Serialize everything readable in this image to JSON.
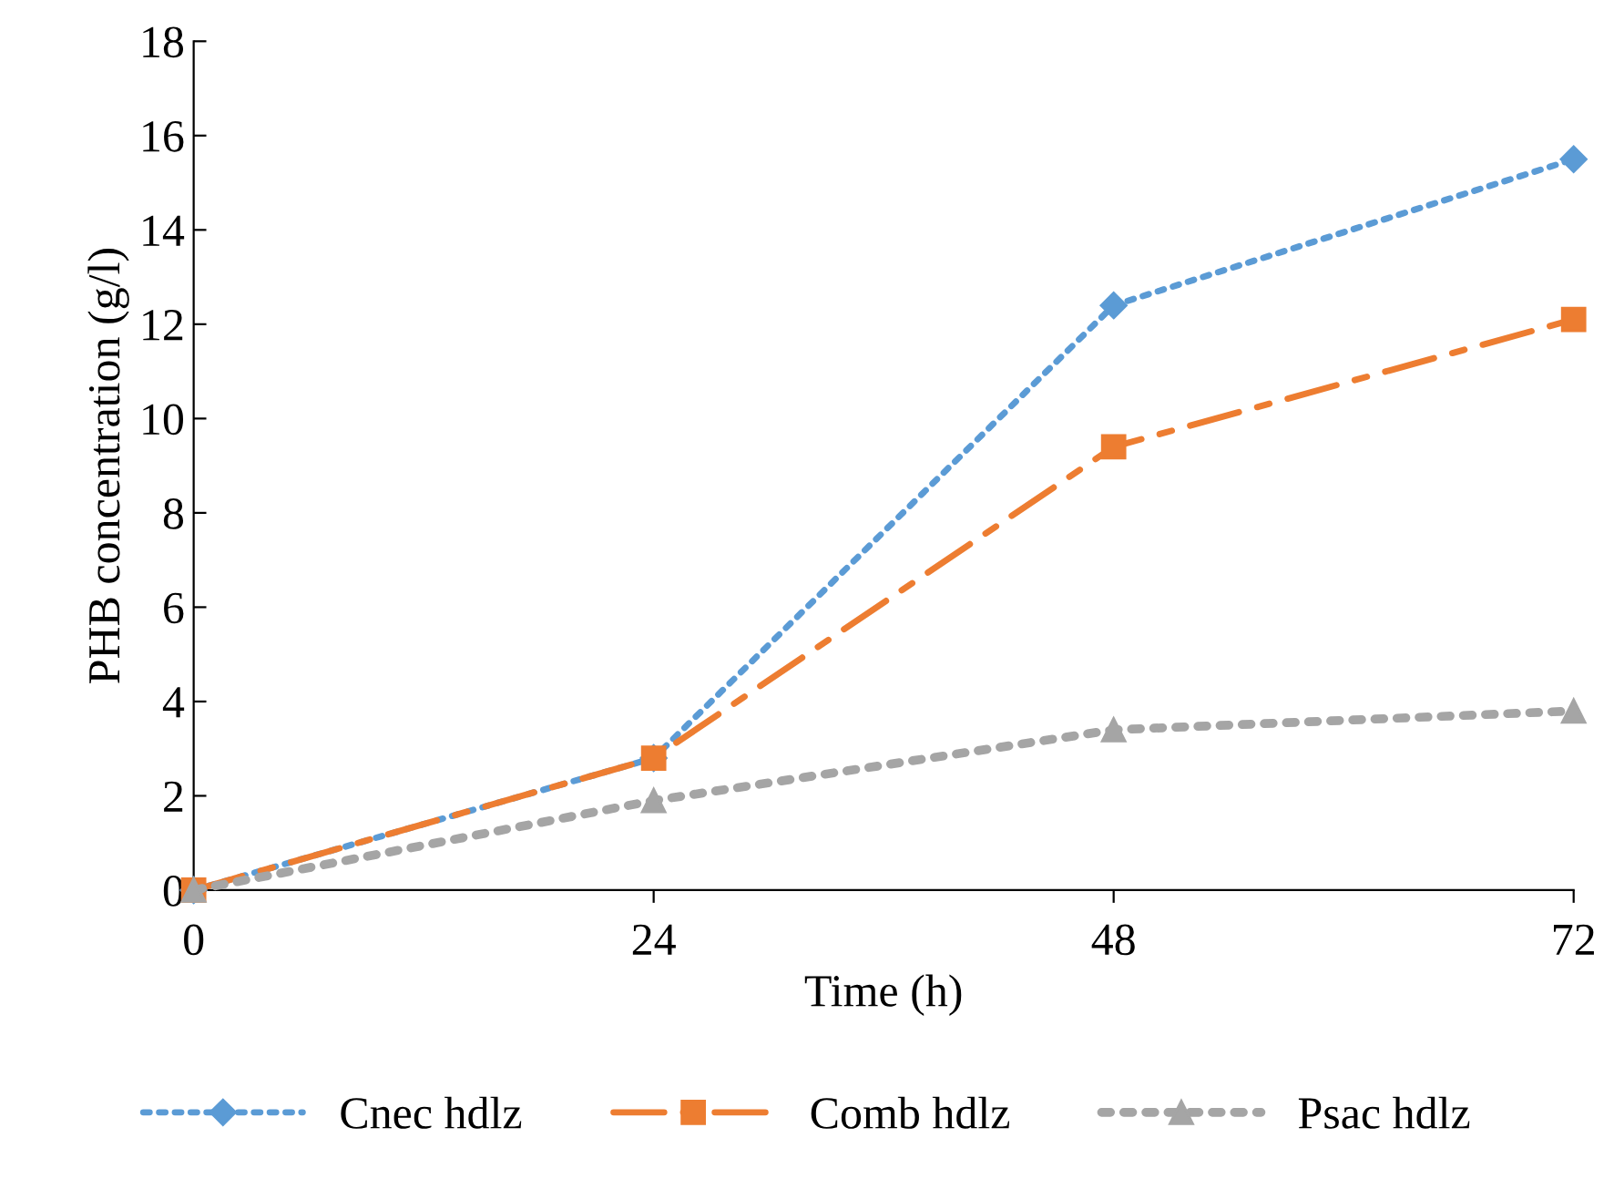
{
  "chart_data": {
    "type": "line",
    "xlabel": "Time (h)",
    "ylabel": "PHB concentration (g/l)",
    "x": [
      0,
      24,
      48,
      72
    ],
    "series": [
      {
        "name": "Cnec hdlz",
        "color": "#5b9bd5",
        "values": [
          0,
          2.8,
          12.4,
          15.5
        ],
        "marker": "diamond",
        "line_style": "dotted"
      },
      {
        "name": "Comb hdlz",
        "color": "#ed7d31",
        "values": [
          0,
          2.8,
          9.4,
          12.1
        ],
        "marker": "square",
        "line_style": "dashed"
      },
      {
        "name": "Psac hdlz",
        "color": "#a5a5a5",
        "values": [
          0,
          1.9,
          3.4,
          3.8
        ],
        "marker": "triangle",
        "line_style": "dotted"
      }
    ],
    "xlim": [
      0,
      72
    ],
    "xticks": [
      0,
      24,
      48,
      72
    ],
    "ylim": [
      0,
      18
    ],
    "yticks": [
      0,
      2,
      4,
      6,
      8,
      10,
      12,
      14,
      16,
      18
    ],
    "grid": false,
    "legend": "bottom"
  }
}
